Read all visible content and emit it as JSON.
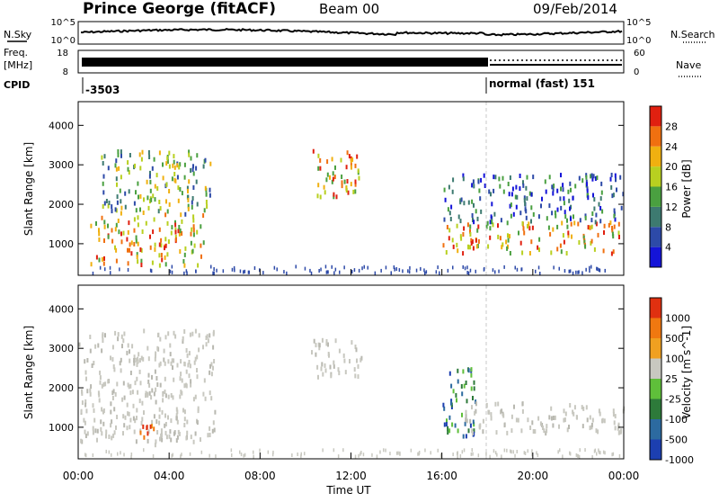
{
  "header": {
    "station": "Prince George (fitACF)",
    "beam": "Beam 00",
    "date": "09/Feb/2014"
  },
  "side_labels": {
    "nsky": "N.Sky",
    "nsearch": "N.Search",
    "freq_line1": "Freq.",
    "freq_line2": "[MHz]",
    "nave": "Nave",
    "cpid": "CPID"
  },
  "strip_ticks": {
    "noise_left_top": "10^5",
    "noise_left_bottom": "10^0",
    "noise_right_top": "10^5",
    "noise_right_bottom": "10^0",
    "freq_left_top": "18",
    "freq_left_bottom": "8",
    "nave_right_top": "60",
    "nave_right_bottom": "0"
  },
  "cpid_segments": [
    {
      "text": "-3503",
      "start_hour": 0
    },
    {
      "text": "normal (fast) 151",
      "start_hour": 18
    }
  ],
  "colorbars": {
    "power": {
      "label": "Power [dB]",
      "ticks": [
        "4",
        "8",
        "12",
        "16",
        "20",
        "24",
        "28"
      ],
      "colors": [
        "#1414d8",
        "#2d4aa8",
        "#3d7a70",
        "#4aa040",
        "#b8d020",
        "#f0b010",
        "#f07010",
        "#e02010"
      ]
    },
    "velocity": {
      "label": "Velocity [m s^-1]",
      "ticks": [
        "1000",
        "500",
        "100",
        "25",
        "-25",
        "-100",
        "-500",
        "-1000"
      ],
      "colors": [
        "#1c3fb0",
        "#2c6aa0",
        "#2d7a3a",
        "#5fbf3a",
        "#c8c8c0",
        "#f0a020",
        "#f07810",
        "#e03010"
      ]
    }
  },
  "chart_data": [
    {
      "type": "heatmap",
      "name": "power_panel",
      "ylabel": "Slant Range [km]",
      "ylim": [
        200,
        4600
      ],
      "yticks": [
        "1000",
        "2000",
        "3000",
        "4000"
      ],
      "xlim": [
        0,
        24
      ],
      "mode_change_hour": 18,
      "scatter_regions": [
        {
          "x": [
            0.5,
            5.5
          ],
          "y": [
            500,
            1800
          ],
          "level": "high"
        },
        {
          "x": [
            1.0,
            6.0
          ],
          "y": [
            1800,
            3400
          ],
          "level": "mid"
        },
        {
          "x": [
            10.2,
            12.5
          ],
          "y": [
            2200,
            3400
          ],
          "level": "high"
        },
        {
          "x": [
            16.0,
            24.0
          ],
          "y": [
            800,
            1600
          ],
          "level": "high"
        },
        {
          "x": [
            16.0,
            24.0
          ],
          "y": [
            1600,
            2800
          ],
          "level": "low"
        }
      ]
    },
    {
      "type": "heatmap",
      "name": "velocity_panel",
      "ylabel": "Slant Range [km]",
      "ylim": [
        200,
        4600
      ],
      "yticks": [
        "1000",
        "2000",
        "3000",
        "4000"
      ],
      "xlim": [
        0,
        24
      ],
      "mode_change_hour": 18,
      "scatter_regions": [
        {
          "x": [
            0.0,
            6.0
          ],
          "y": [
            600,
            3500
          ],
          "level": "ground"
        },
        {
          "x": [
            2.5,
            3.5
          ],
          "y": [
            700,
            1200
          ],
          "level": "away"
        },
        {
          "x": [
            10.2,
            12.5
          ],
          "y": [
            2300,
            3300
          ],
          "level": "ground"
        },
        {
          "x": [
            16.0,
            17.5
          ],
          "y": [
            800,
            2600
          ],
          "level": "toward"
        },
        {
          "x": [
            17.0,
            24.0
          ],
          "y": [
            900,
            1700
          ],
          "level": "ground"
        }
      ]
    }
  ],
  "xaxis": {
    "label": "Time UT",
    "ticks": [
      "00:00",
      "04:00",
      "08:00",
      "12:00",
      "16:00",
      "20:00",
      "00:00"
    ]
  }
}
